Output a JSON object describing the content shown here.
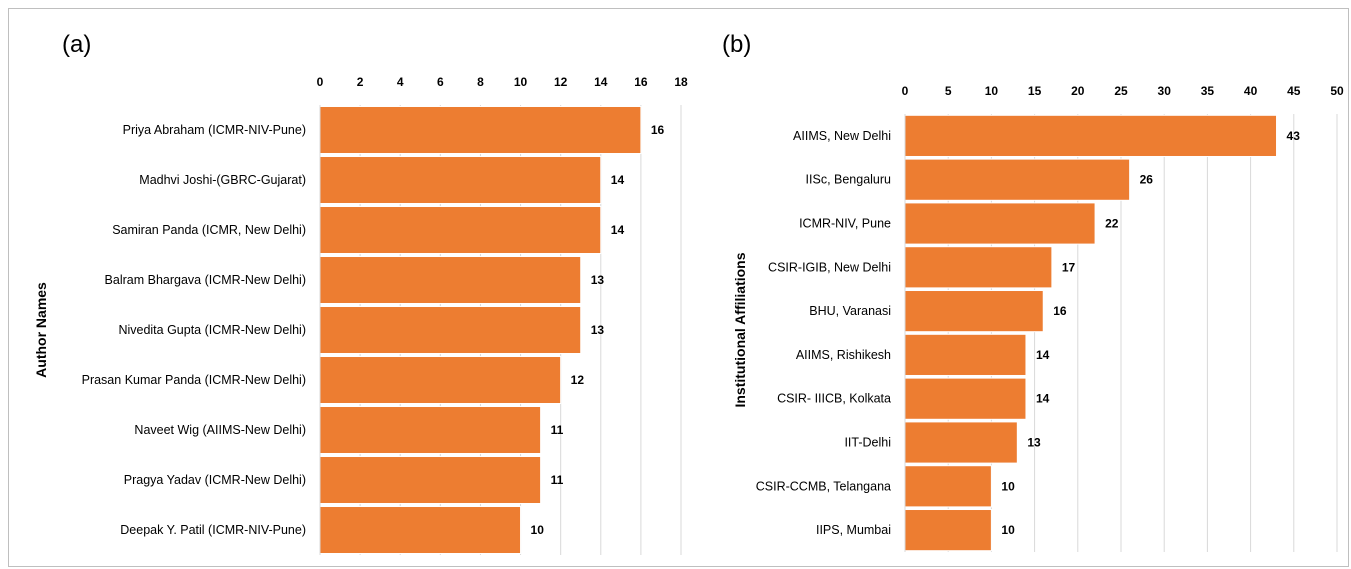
{
  "chart_data": [
    {
      "panel_label": "(a)",
      "type": "bar",
      "orientation": "horizontal",
      "ylabel": "Author Names",
      "xlim": [
        0,
        18
      ],
      "x_ticks": [
        "0",
        "2",
        "4",
        "6",
        "8",
        "10",
        "12",
        "14",
        "16",
        "18"
      ],
      "x_tick_values": [
        0,
        2,
        4,
        6,
        8,
        10,
        12,
        14,
        16,
        18
      ],
      "categories": [
        "Priya Abraham (ICMR-NIV-Pune)",
        "Madhvi Joshi-(GBRC-Gujarat)",
        "Samiran Panda (ICMR, New Delhi)",
        "Balram Bhargava (ICMR-New Delhi)",
        "Nivedita Gupta (ICMR-New Delhi)",
        "Prasan Kumar Panda (ICMR-New Delhi)",
        "Naveet Wig (AIIMS-New Delhi)",
        "Pragya Yadav (ICMR-New Delhi)",
        "Deepak Y. Patil (ICMR-NIV-Pune)"
      ],
      "values": [
        16,
        14,
        14,
        13,
        13,
        12,
        11,
        11,
        10
      ],
      "grid": true,
      "bar_color": "#ED7D31"
    },
    {
      "panel_label": "(b)",
      "type": "bar",
      "orientation": "horizontal",
      "ylabel": "Institutional Affiliations",
      "xlim": [
        0,
        50
      ],
      "x_ticks": [
        "0",
        "5",
        "10",
        "15",
        "20",
        "25",
        "30",
        "35",
        "40",
        "45",
        "50"
      ],
      "x_tick_values": [
        0,
        5,
        10,
        15,
        20,
        25,
        30,
        35,
        40,
        45,
        50
      ],
      "categories": [
        "AIIMS, New Delhi",
        "IISc, Bengaluru",
        "ICMR-NIV, Pune",
        "CSIR-IGIB, New Delhi",
        "BHU, Varanasi",
        "AIIMS, Rishikesh",
        "CSIR- IIICB, Kolkata",
        "IIT-Delhi",
        "CSIR-CCMB, Telangana",
        "IIPS, Mumbai"
      ],
      "values": [
        43,
        26,
        22,
        17,
        16,
        14,
        14,
        13,
        10,
        10
      ],
      "grid": true,
      "bar_color": "#ED7D31"
    }
  ]
}
